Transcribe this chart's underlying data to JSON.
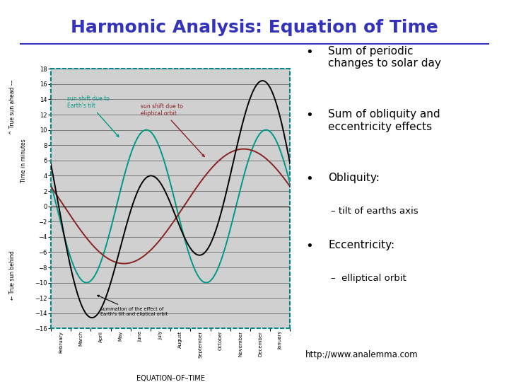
{
  "title": "Harmonic Analysis: Equation of Time",
  "title_color": "#3333bb",
  "title_fontsize": 18,
  "bg_color": "#ffffff",
  "plot_bg_color": "#d0d0d0",
  "plot_border_color": "#008888",
  "ylabel_top": "^ True sun ahead --",
  "ylabel_bottom": "v-- True sun behind",
  "ylabel_mid": "Time in minutes",
  "xlabel": "EQUATION–OF–TIME",
  "ylim": [
    -16,
    18
  ],
  "months": [
    "February",
    "March",
    "April",
    "May",
    "June",
    "July",
    "August",
    "September",
    "October",
    "November",
    "December",
    "January"
  ],
  "obliquity_color": "#009988",
  "eccentricity_color": "#882222",
  "eot_color": "#000000",
  "url_text": "http://www.analemma.com",
  "annotation1": "sun shift due to\nEarth's tilt",
  "annotation1_color": "#009988",
  "annotation2": "sun shift due to\neliptical orbit",
  "annotation2_color": "#882222",
  "annotation3": "summation of the effect of\nEarth's tilt and eliptical orbit",
  "annotation3_color": "#000000",
  "bullets": [
    "• Sum of periodic\n  changes to solar day",
    "• Sum of obliquity and\n  eccentricity effects",
    "• Obliquity:",
    "    – tilt of earths axis",
    "• Eccentricity:",
    "    –  elliptical orbit"
  ]
}
